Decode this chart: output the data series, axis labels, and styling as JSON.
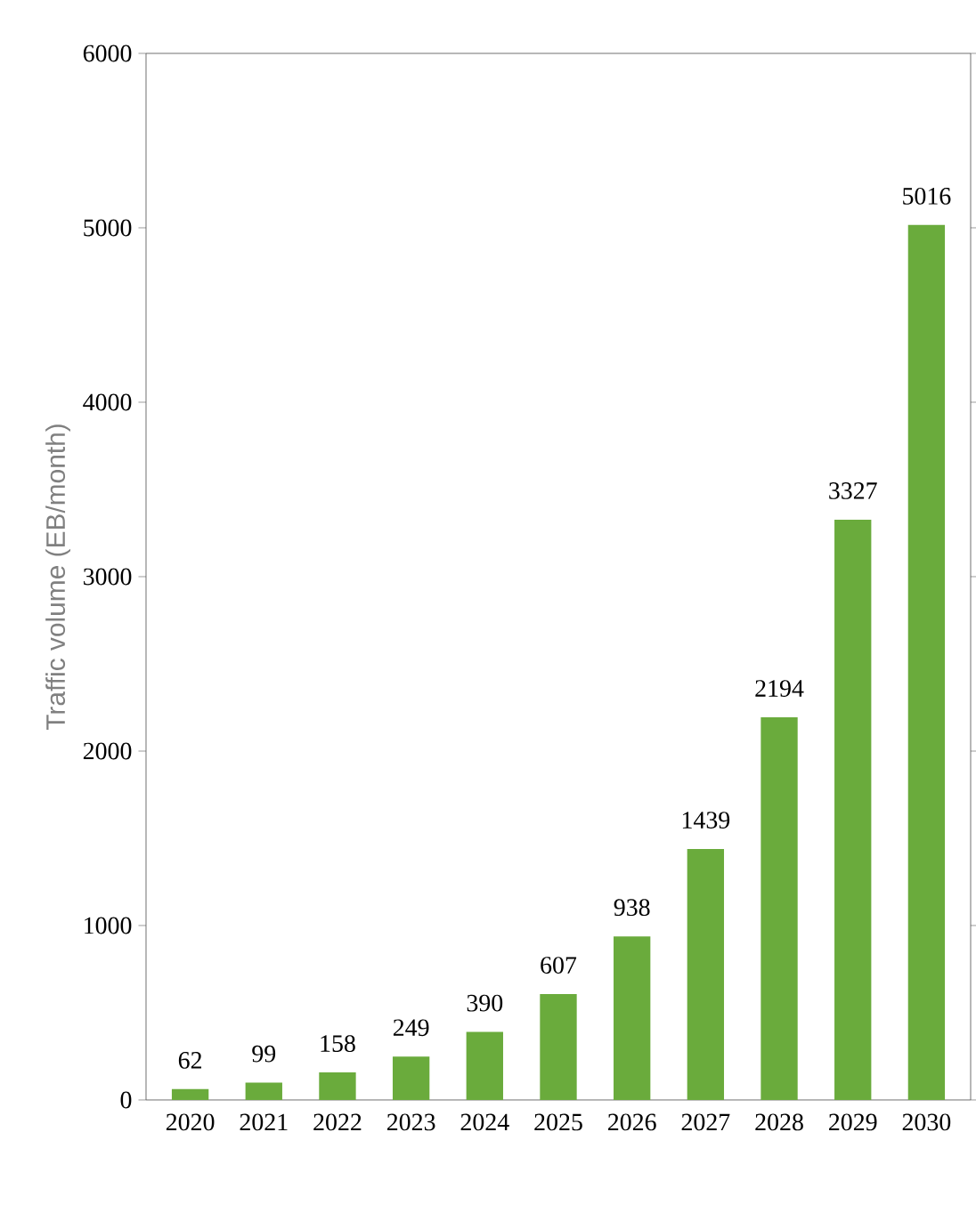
{
  "chart_data": {
    "type": "bar",
    "ylabel": "Traffic volume (EB/month)",
    "categories": [
      "2020",
      "2021",
      "2022",
      "2023",
      "2024",
      "2025",
      "2026",
      "2027",
      "2028",
      "2029",
      "2030"
    ],
    "values": [
      62,
      99,
      158,
      249,
      390,
      607,
      938,
      1439,
      2194,
      3327,
      5016
    ],
    "color": "#6aab3c",
    "ylim": [
      0,
      6000
    ],
    "yticks": [
      0,
      1000,
      2000,
      3000,
      4000,
      5000,
      6000
    ],
    "data_labels": true
  }
}
